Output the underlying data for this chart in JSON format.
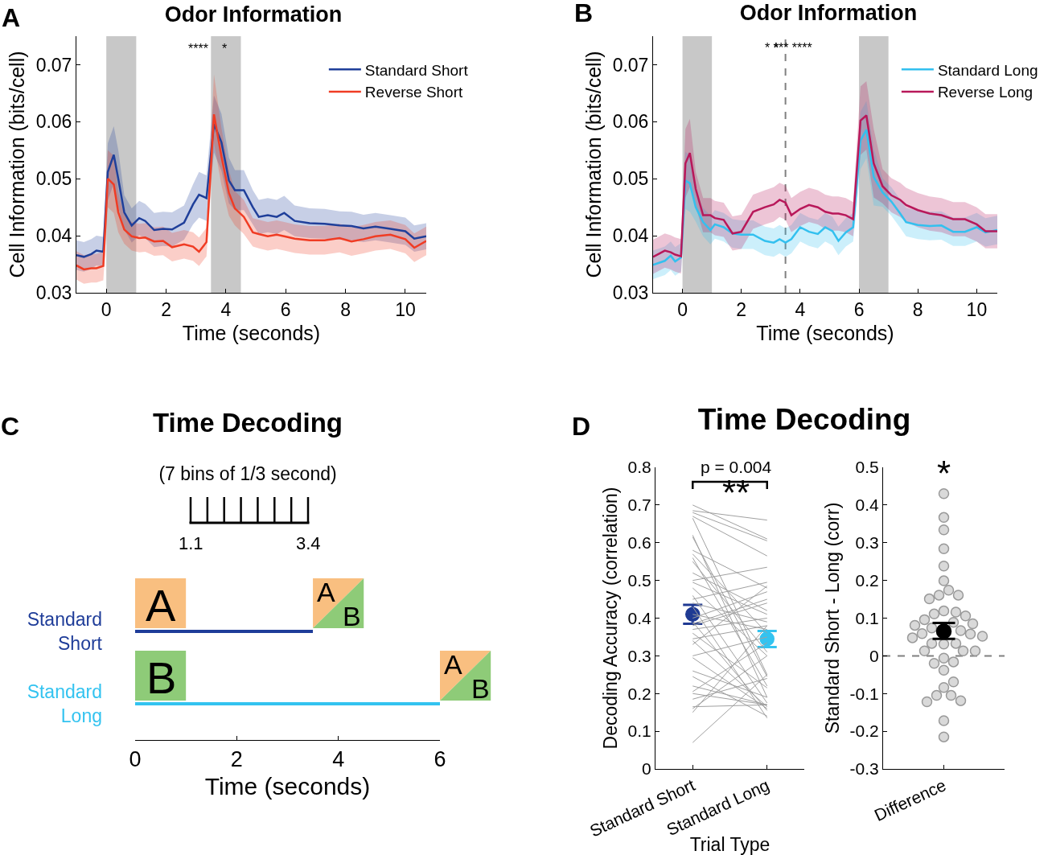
{
  "chart_data": [
    {
      "type": "line",
      "title": "Odor Information",
      "xlabel": "Time (seconds)",
      "ylabel": "Cell Information (bits/cell)",
      "x": [
        -1,
        -0.75,
        -0.5,
        -0.33,
        -0.1,
        0.05,
        0.25,
        0.4,
        0.6,
        0.85,
        1.1,
        1.3,
        1.6,
        1.9,
        2.2,
        2.6,
        2.9,
        3.1,
        3.35,
        3.6,
        3.85,
        4.1,
        4.3,
        4.6,
        4.9,
        5.1,
        5.4,
        5.7,
        5.95,
        6.3,
        6.8,
        7.3,
        7.8,
        8.2,
        8.6,
        9.0,
        9.5,
        10.0,
        10.3,
        10.7
      ],
      "xlim": [
        -1,
        10.7
      ],
      "xticks": [
        0,
        2,
        4,
        6,
        8,
        10
      ],
      "ylim": [
        0.03,
        0.075
      ],
      "yticks": [
        0.03,
        0.04,
        0.05,
        0.06,
        0.07
      ],
      "legend": "top right",
      "bands": [
        {
          "axis": "x",
          "from": 0,
          "to": 1,
          "color": "#c8c8c8"
        },
        {
          "axis": "x",
          "from": 3.5,
          "to": 4.5,
          "color": "#c8c8c8"
        }
      ],
      "annotations": [
        "A",
        "****",
        "*"
      ],
      "series": [
        {
          "name": "Standard Short",
          "color": "#1f3f9a",
          "values": [
            0.0366,
            0.0363,
            0.0368,
            0.0374,
            0.0372,
            0.0512,
            0.0542,
            0.05,
            0.0441,
            0.0418,
            0.0431,
            0.0426,
            0.041,
            0.0412,
            0.0411,
            0.0423,
            0.0455,
            0.0472,
            0.0466,
            0.0596,
            0.0564,
            0.0497,
            0.048,
            0.048,
            0.045,
            0.0433,
            0.0436,
            0.0433,
            0.044,
            0.0426,
            0.0422,
            0.0421,
            0.0418,
            0.0417,
            0.0413,
            0.0416,
            0.0412,
            0.0408,
            0.0395,
            0.0399
          ],
          "lower": [
            0.034,
            0.0337,
            0.0342,
            0.0348,
            0.0346,
            0.0462,
            0.0492,
            0.045,
            0.0411,
            0.0388,
            0.0401,
            0.0396,
            0.038,
            0.0382,
            0.0381,
            0.0393,
            0.042,
            0.0432,
            0.0426,
            0.0546,
            0.0514,
            0.0457,
            0.0445,
            0.0445,
            0.042,
            0.0403,
            0.0406,
            0.0403,
            0.041,
            0.0399,
            0.0396,
            0.0395,
            0.0393,
            0.0392,
            0.0389,
            0.0392,
            0.0388,
            0.0384,
            0.0372,
            0.0376
          ],
          "upper": [
            0.0392,
            0.0389,
            0.0394,
            0.04,
            0.0398,
            0.0562,
            0.0592,
            0.055,
            0.0471,
            0.0448,
            0.0461,
            0.0456,
            0.044,
            0.0442,
            0.0441,
            0.0453,
            0.049,
            0.0512,
            0.0506,
            0.0646,
            0.0614,
            0.0537,
            0.0515,
            0.0515,
            0.048,
            0.0463,
            0.0466,
            0.0463,
            0.047,
            0.0453,
            0.0448,
            0.0447,
            0.0443,
            0.0442,
            0.0437,
            0.044,
            0.0436,
            0.0432,
            0.0418,
            0.0422
          ]
        },
        {
          "name": "Reverse Short",
          "color": "#f03c24",
          "values": [
            0.0348,
            0.0341,
            0.0343,
            0.0343,
            0.0347,
            0.05,
            0.049,
            0.0441,
            0.0411,
            0.0399,
            0.0396,
            0.0397,
            0.039,
            0.0391,
            0.038,
            0.0385,
            0.0381,
            0.0372,
            0.0389,
            0.0613,
            0.0539,
            0.0475,
            0.0448,
            0.0433,
            0.0406,
            0.0403,
            0.0399,
            0.0402,
            0.0399,
            0.0395,
            0.0392,
            0.0392,
            0.0396,
            0.039,
            0.0394,
            0.0399,
            0.0402,
            0.0394,
            0.0379,
            0.0391
          ],
          "lower": [
            0.0323,
            0.0316,
            0.0318,
            0.0318,
            0.0322,
            0.045,
            0.044,
            0.0406,
            0.0386,
            0.0374,
            0.0371,
            0.0372,
            0.0365,
            0.0366,
            0.0355,
            0.036,
            0.0356,
            0.0347,
            0.0364,
            0.0563,
            0.0489,
            0.0435,
            0.0418,
            0.0403,
            0.0381,
            0.0378,
            0.0374,
            0.0377,
            0.0374,
            0.037,
            0.0367,
            0.0367,
            0.0371,
            0.0365,
            0.0369,
            0.0374,
            0.0377,
            0.0369,
            0.0354,
            0.0366
          ],
          "upper": [
            0.0373,
            0.0366,
            0.0368,
            0.0368,
            0.0372,
            0.055,
            0.054,
            0.0476,
            0.0436,
            0.0424,
            0.0421,
            0.0422,
            0.0415,
            0.0416,
            0.0405,
            0.041,
            0.0406,
            0.0397,
            0.0414,
            0.0683,
            0.0589,
            0.0515,
            0.0478,
            0.0463,
            0.0431,
            0.0428,
            0.0424,
            0.0427,
            0.0424,
            0.042,
            0.0417,
            0.0417,
            0.0421,
            0.0415,
            0.0419,
            0.0424,
            0.0427,
            0.0419,
            0.0404,
            0.0416
          ]
        }
      ]
    },
    {
      "type": "line",
      "title": "Odor Information",
      "xlabel": "Time (seconds)",
      "ylabel": "Cell Information (bits/cell)",
      "x": [
        -1,
        -0.6,
        -0.4,
        -0.25,
        -0.05,
        0.1,
        0.25,
        0.45,
        0.7,
        0.95,
        1.1,
        1.4,
        1.7,
        2.0,
        2.4,
        2.8,
        3.1,
        3.3,
        3.5,
        3.7,
        4.0,
        4.3,
        4.6,
        4.85,
        5.1,
        5.3,
        5.55,
        5.8,
        6.05,
        6.25,
        6.5,
        6.8,
        7.1,
        7.4,
        7.6,
        8.0,
        8.4,
        8.8,
        9.2,
        9.6,
        10.0,
        10.3,
        10.7
      ],
      "xlim": [
        -1,
        10.7
      ],
      "xticks": [
        0,
        2,
        4,
        6,
        8,
        10
      ],
      "ylim": [
        0.03,
        0.075
      ],
      "yticks": [
        0.03,
        0.04,
        0.05,
        0.06,
        0.07
      ],
      "legend": "top right",
      "bands": [
        {
          "axis": "x",
          "from": 0,
          "to": 1,
          "color": "#c8c8c8"
        },
        {
          "axis": "x",
          "from": 6,
          "to": 7,
          "color": "#c8c8c8"
        }
      ],
      "ref_lines": [
        {
          "axis": "x",
          "value": 3.5,
          "color": "#808080",
          "line_style": "dashed"
        }
      ],
      "annotations": [
        "B",
        "* ******* ****"
      ],
      "series": [
        {
          "name": "Standard Long",
          "color": "#33c0ef",
          "values": [
            0.0349,
            0.0356,
            0.0365,
            0.0355,
            0.0362,
            0.0497,
            0.0492,
            0.045,
            0.0424,
            0.041,
            0.042,
            0.0415,
            0.0404,
            0.0402,
            0.0402,
            0.0391,
            0.0388,
            0.0394,
            0.0388,
            0.0394,
            0.0415,
            0.0407,
            0.0403,
            0.0415,
            0.0408,
            0.0391,
            0.0406,
            0.0415,
            0.0567,
            0.0586,
            0.0503,
            0.0476,
            0.046,
            0.0439,
            0.0424,
            0.0419,
            0.0417,
            0.0418,
            0.0407,
            0.0407,
            0.0415,
            0.0406,
            0.041
          ],
          "lower": [
            0.0324,
            0.0331,
            0.034,
            0.033,
            0.0337,
            0.0447,
            0.0442,
            0.0425,
            0.0399,
            0.0385,
            0.0395,
            0.039,
            0.0379,
            0.0377,
            0.0377,
            0.0366,
            0.0363,
            0.0369,
            0.0363,
            0.0369,
            0.039,
            0.0382,
            0.0378,
            0.039,
            0.0383,
            0.0366,
            0.0381,
            0.039,
            0.0517,
            0.0536,
            0.0453,
            0.0451,
            0.0435,
            0.0414,
            0.0399,
            0.0394,
            0.0392,
            0.0393,
            0.0382,
            0.0382,
            0.039,
            0.0381,
            0.0385
          ],
          "upper": [
            0.0374,
            0.0381,
            0.039,
            0.038,
            0.0387,
            0.0547,
            0.0542,
            0.0475,
            0.0449,
            0.0435,
            0.0445,
            0.044,
            0.0429,
            0.0427,
            0.0427,
            0.0416,
            0.0413,
            0.0419,
            0.0413,
            0.0419,
            0.044,
            0.0432,
            0.0428,
            0.044,
            0.0433,
            0.0416,
            0.0431,
            0.044,
            0.0617,
            0.0636,
            0.0553,
            0.0501,
            0.0485,
            0.0464,
            0.0449,
            0.0444,
            0.0442,
            0.0443,
            0.0432,
            0.0432,
            0.044,
            0.0431,
            0.0435
          ]
        },
        {
          "name": "Reverse Long",
          "color": "#b8185a",
          "values": [
            0.0363,
            0.0374,
            0.0371,
            0.0367,
            0.0364,
            0.0527,
            0.0545,
            0.0482,
            0.0436,
            0.0436,
            0.0431,
            0.0428,
            0.0404,
            0.0407,
            0.0442,
            0.045,
            0.0455,
            0.0463,
            0.0458,
            0.0436,
            0.0447,
            0.0454,
            0.045,
            0.0442,
            0.0439,
            0.0439,
            0.0436,
            0.0429,
            0.0602,
            0.0611,
            0.0527,
            0.0487,
            0.0471,
            0.0463,
            0.0454,
            0.0445,
            0.0439,
            0.0436,
            0.0429,
            0.0429,
            0.042,
            0.0408,
            0.0408
          ],
          "lower": [
            0.0333,
            0.0344,
            0.0341,
            0.0337,
            0.0334,
            0.0467,
            0.0485,
            0.0452,
            0.0406,
            0.0406,
            0.0401,
            0.0398,
            0.0374,
            0.0377,
            0.0412,
            0.042,
            0.0425,
            0.0433,
            0.0428,
            0.0406,
            0.0417,
            0.0424,
            0.042,
            0.0412,
            0.0409,
            0.0409,
            0.0406,
            0.0399,
            0.0542,
            0.0551,
            0.0467,
            0.0457,
            0.0441,
            0.0433,
            0.0424,
            0.0415,
            0.0409,
            0.0406,
            0.0399,
            0.0399,
            0.039,
            0.0378,
            0.0378
          ],
          "upper": [
            0.0393,
            0.0404,
            0.0401,
            0.0397,
            0.0394,
            0.0587,
            0.0605,
            0.0512,
            0.0466,
            0.0466,
            0.0461,
            0.0458,
            0.0434,
            0.0437,
            0.0472,
            0.048,
            0.0485,
            0.0493,
            0.0488,
            0.0466,
            0.0477,
            0.0484,
            0.048,
            0.0472,
            0.0469,
            0.0469,
            0.0466,
            0.0459,
            0.0662,
            0.0671,
            0.0587,
            0.0517,
            0.0501,
            0.0493,
            0.0484,
            0.0475,
            0.0469,
            0.0466,
            0.0459,
            0.0459,
            0.045,
            0.0438,
            0.0438
          ]
        }
      ]
    },
    {
      "type": "bar",
      "orientation": "horizontal",
      "title": "Time Decoding",
      "subtitle": "(7 bins of 1/3 second)",
      "xlabel": "Time (seconds)",
      "categories": [
        "Standard Short",
        "Standard Long"
      ],
      "values": [
        3.5,
        6
      ],
      "colors": [
        "#1f3d99",
        "#33c3f0"
      ],
      "xlim": [
        0,
        6
      ],
      "xticks": [
        0,
        2,
        4,
        6
      ],
      "annotations": [
        "C",
        "1.1",
        "3.4",
        "A",
        "A",
        "B",
        "B",
        "A",
        "B"
      ]
    },
    {
      "type": "line",
      "title": "Time Decoding",
      "xlabel": "Trial Type",
      "ylabel": "Decoding Accuracy (correlation)",
      "categories": [
        "Standard Short",
        "Standard Long"
      ],
      "ylim": [
        0,
        0.8
      ],
      "yticks": [
        0,
        0.1,
        0.2,
        0.3,
        0.4,
        0.5,
        0.6,
        0.7,
        0.8
      ],
      "annotations": [
        "D",
        "p = 0.004",
        "**"
      ],
      "series": [
        {
          "color": "#a0a0a0",
          "values": [
            0.7,
            0.61
          ]
        },
        {
          "color": "#a0a0a0",
          "values": [
            0.685,
            0.66
          ]
        },
        {
          "color": "#a0a0a0",
          "values": [
            0.68,
            0.605
          ]
        },
        {
          "color": "#a0a0a0",
          "values": [
            0.67,
            0.565
          ]
        },
        {
          "color": "#a0a0a0",
          "values": [
            0.665,
            0.25
          ]
        },
        {
          "color": "#a0a0a0",
          "values": [
            0.62,
            0.19
          ]
        },
        {
          "color": "#a0a0a0",
          "values": [
            0.615,
            0.245
          ]
        },
        {
          "color": "#a0a0a0",
          "values": [
            0.58,
            0.48
          ]
        },
        {
          "color": "#a0a0a0",
          "values": [
            0.57,
            0.36
          ]
        },
        {
          "color": "#a0a0a0",
          "values": [
            0.56,
            0.22
          ]
        },
        {
          "color": "#a0a0a0",
          "values": [
            0.55,
            0.31
          ]
        },
        {
          "color": "#a0a0a0",
          "values": [
            0.52,
            0.42
          ]
        },
        {
          "color": "#a0a0a0",
          "values": [
            0.5,
            0.535
          ]
        },
        {
          "color": "#a0a0a0",
          "values": [
            0.495,
            0.41
          ]
        },
        {
          "color": "#a0a0a0",
          "values": [
            0.48,
            0.3
          ]
        },
        {
          "color": "#a0a0a0",
          "values": [
            0.46,
            0.175
          ]
        },
        {
          "color": "#a0a0a0",
          "values": [
            0.45,
            0.495
          ]
        },
        {
          "color": "#a0a0a0",
          "values": [
            0.44,
            0.39
          ]
        },
        {
          "color": "#a0a0a0",
          "values": [
            0.43,
            0.135
          ]
        },
        {
          "color": "#a0a0a0",
          "values": [
            0.41,
            0.37
          ]
        },
        {
          "color": "#a0a0a0",
          "values": [
            0.4,
            0.47
          ]
        },
        {
          "color": "#a0a0a0",
          "values": [
            0.39,
            0.155
          ]
        },
        {
          "color": "#a0a0a0",
          "values": [
            0.385,
            0.45
          ]
        },
        {
          "color": "#a0a0a0",
          "values": [
            0.38,
            0.44
          ]
        },
        {
          "color": "#a0a0a0",
          "values": [
            0.37,
            0.4
          ]
        },
        {
          "color": "#a0a0a0",
          "values": [
            0.36,
            0.215
          ]
        },
        {
          "color": "#a0a0a0",
          "values": [
            0.345,
            0.38
          ]
        },
        {
          "color": "#a0a0a0",
          "values": [
            0.34,
            0.165
          ]
        },
        {
          "color": "#a0a0a0",
          "values": [
            0.33,
            0.485
          ]
        },
        {
          "color": "#a0a0a0",
          "values": [
            0.3,
            0.35
          ]
        },
        {
          "color": "#a0a0a0",
          "values": [
            0.295,
            0.16
          ]
        },
        {
          "color": "#a0a0a0",
          "values": [
            0.26,
            0.19
          ]
        },
        {
          "color": "#a0a0a0",
          "values": [
            0.245,
            0.14
          ]
        },
        {
          "color": "#a0a0a0",
          "values": [
            0.22,
            0.17
          ]
        },
        {
          "color": "#a0a0a0",
          "values": [
            0.205,
            0.335
          ]
        },
        {
          "color": "#a0a0a0",
          "values": [
            0.2,
            0.17
          ]
        },
        {
          "color": "#a0a0a0",
          "values": [
            0.185,
            0.24
          ]
        },
        {
          "color": "#a0a0a0",
          "values": [
            0.165,
            0.17
          ]
        },
        {
          "color": "#a0a0a0",
          "values": [
            0.16,
            0.3
          ]
        },
        {
          "color": "#a0a0a0",
          "values": [
            0.15,
            0.38
          ]
        },
        {
          "color": "#a0a0a0",
          "values": [
            0.07,
            0.25
          ]
        },
        {
          "type": "scatter",
          "marker": "circle",
          "values": [
            0.41,
            0.345
          ],
          "colors": [
            "#1f3a93",
            "#33c3f0"
          ],
          "errors": [
            [
              0.385,
              0.435
            ],
            [
              0.323,
              0.366
            ]
          ]
        }
      ]
    },
    {
      "type": "scatter",
      "ylabel": "Standard Short - Long (corr)",
      "categories": [
        "Difference"
      ],
      "ylim": [
        -0.3,
        0.5
      ],
      "yticks": [
        -0.3,
        -0.2,
        -0.1,
        0,
        0.1,
        0.2,
        0.3,
        0.4,
        0.5
      ],
      "marker": "circle",
      "ref_lines": [
        {
          "axis": "y",
          "value": 0,
          "color": "#808080",
          "line_style": "dashed"
        }
      ],
      "annotations": [
        "*"
      ],
      "series": [
        {
          "color": "#d9d9d9",
          "x": [
            "Difference",
            "Difference",
            "Difference",
            "Difference",
            "Difference",
            "Difference",
            "Difference",
            "Difference",
            "Difference",
            "Difference",
            "Difference",
            "Difference",
            "Difference",
            "Difference",
            "Difference",
            "Difference",
            "Difference",
            "Difference",
            "Difference",
            "Difference",
            "Difference",
            "Difference",
            "Difference",
            "Difference",
            "Difference",
            "Difference",
            "Difference",
            "Difference",
            "Difference",
            "Difference",
            "Difference",
            "Difference",
            "Difference",
            "Difference",
            "Difference",
            "Difference",
            "Difference",
            "Difference",
            "Difference",
            "Difference",
            "Difference",
            "Difference"
          ],
          "values": [
            0.43,
            0.367,
            0.334,
            0.284,
            0.238,
            0.199,
            0.174,
            0.161,
            0.161,
            0.151,
            0.119,
            0.116,
            0.111,
            0.106,
            0.096,
            0.089,
            0.085,
            0.081,
            0.074,
            0.067,
            0.059,
            0.058,
            0.048,
            0.052,
            0.031,
            0.033,
            0.033,
            0.013,
            0.013,
            0.013,
            -0.006,
            -0.016,
            -0.02,
            -0.038,
            -0.084,
            -0.069,
            -0.105,
            -0.105,
            -0.119,
            -0.122,
            -0.172,
            -0.215
          ]
        },
        {
          "color": "#000000",
          "x": [
            "Difference"
          ],
          "values": [
            0.065
          ],
          "errors": [
            [
              0.045,
              0.087
            ]
          ]
        }
      ]
    }
  ]
}
